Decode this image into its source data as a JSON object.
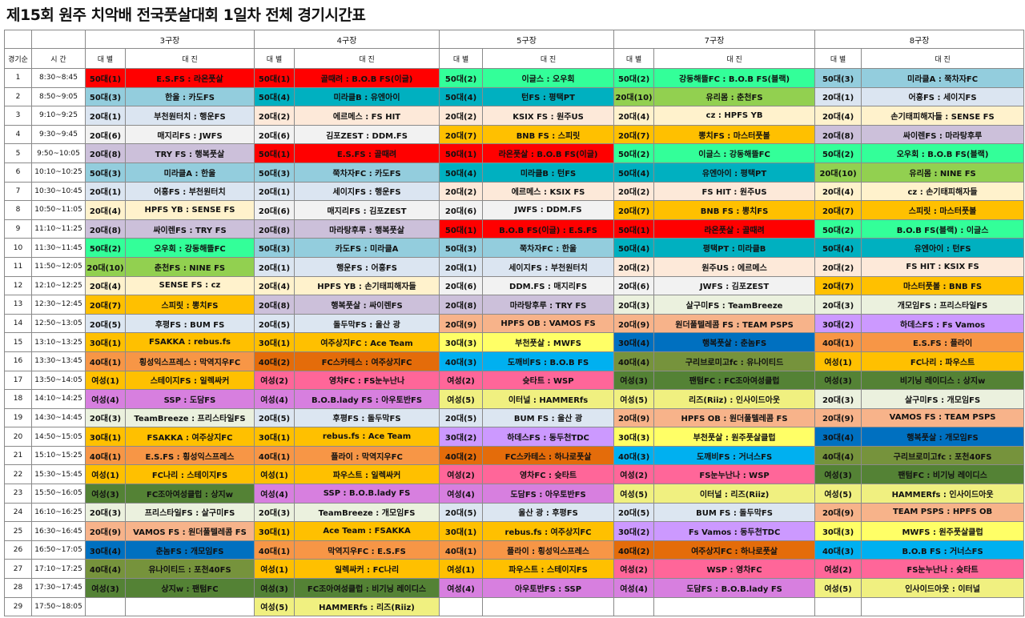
{
  "title": "제15회 원주 치악배 전국풋살대회 1일차 전체 경기시간표",
  "header": {
    "order_label": "경기순",
    "time_label": "시 간",
    "division_label": "대 별",
    "match_label": "대 진",
    "courts": [
      "3구장",
      "4구장",
      "5구장",
      "7구장",
      "8구장"
    ]
  },
  "colors": {
    "50대(1)": "#ff0000",
    "50대(2)": "#33ff99",
    "50대(3)": "#93cddd",
    "50대(4)": "#00b0c0",
    "20대(1)": "#dbe5f1",
    "20대(2)": "#fde9d9",
    "20대(3)": "#ebf1de",
    "20대(4)": "#fff2cc",
    "20대(5)": "#dce6f1",
    "20대(6)": "#f2f2f2",
    "20대(7)": "#ffc000",
    "20대(8)": "#ccc0da",
    "20대(9)": "#f7b38a",
    "20대(10)": "#92d050",
    "30대(1)": "#ffc000",
    "30대(2)": "#cc99ff",
    "30대(3)": "#ffff66",
    "30대(4)": "#0070c0",
    "40대(1)": "#f79646",
    "40대(2)": "#e46c0a",
    "40대(3)": "#00b0f0",
    "40대(4)": "#76933c",
    "여성(1)": "#ffc000",
    "여성(2)": "#ff6699",
    "여성(3)": "#548235",
    "여성(4)": "#d77fdf",
    "여성(5)": "#f0f080"
  },
  "rows": [
    {
      "no": "1",
      "time": "8:30~8:45",
      "cells": [
        {
          "div": "50대(1)",
          "match": "E.S.FS : 라온풋살"
        },
        {
          "div": "50대(1)",
          "match": "골때려 : B.O.B FS(이글)"
        },
        {
          "div": "50대(2)",
          "match": "이글스 : 오우회"
        },
        {
          "div": "50대(2)",
          "match": "강동해뜰FC : B.O.B FS(블랙)"
        },
        {
          "div": "50대(3)",
          "match": "미라클A : 쭉차자FC"
        }
      ]
    },
    {
      "no": "2",
      "time": "8:50~9:05",
      "cells": [
        {
          "div": "50대(3)",
          "match": "한울 : 카도FS"
        },
        {
          "div": "50대(4)",
          "match": "미라클B : 유엔아이"
        },
        {
          "div": "50대(4)",
          "match": "턴FS : 평택PT"
        },
        {
          "div": "20대(10)",
          "match": "유리몸 : 춘천FS"
        },
        {
          "div": "20대(1)",
          "match": "어흥FS : 세이지FS"
        }
      ]
    },
    {
      "no": "3",
      "time": "9:10~9:25",
      "cells": [
        {
          "div": "20대(1)",
          "match": "부천원터치 : 행운FS"
        },
        {
          "div": "20대(2)",
          "match": "에르메스 : FS HIT"
        },
        {
          "div": "20대(2)",
          "match": "KSIX FS : 원주US"
        },
        {
          "div": "20대(4)",
          "match": "cz : HPFS YB"
        },
        {
          "div": "20대(4)",
          "match": "손기태피해자들 : SENSE FS"
        }
      ]
    },
    {
      "no": "4",
      "time": "9:30~9:45",
      "cells": [
        {
          "div": "20대(6)",
          "match": "매지리FS : JWFS"
        },
        {
          "div": "20대(6)",
          "match": "김포ZEST : DDM.FS"
        },
        {
          "div": "20대(7)",
          "match": "BNB FS : 스피릿"
        },
        {
          "div": "20대(7)",
          "match": "뽕치FS : 마스터풋볼"
        },
        {
          "div": "20대(8)",
          "match": "싸이렌FS : 마라탕후루"
        }
      ]
    },
    {
      "no": "5",
      "time": "9:50~10:05",
      "cells": [
        {
          "div": "20대(8)",
          "match": "TRY FS : 행복풋살"
        },
        {
          "div": "50대(1)",
          "match": "E.S.FS : 골때려"
        },
        {
          "div": "50대(1)",
          "match": "라온풋살 : B.O.B FS(이글)"
        },
        {
          "div": "50대(2)",
          "match": "이글스 : 강동해뜰FC"
        },
        {
          "div": "50대(2)",
          "match": "오우회 : B.O.B FS(블랙)"
        }
      ]
    },
    {
      "no": "6",
      "time": "10:10~10:25",
      "cells": [
        {
          "div": "50대(3)",
          "match": "미라클A : 한울"
        },
        {
          "div": "50대(3)",
          "match": "쭉차자FC : 카도FS"
        },
        {
          "div": "50대(4)",
          "match": "미라클B : 턴FS"
        },
        {
          "div": "50대(4)",
          "match": "유엔아이 : 평택PT"
        },
        {
          "div": "20대(10)",
          "match": "유리몸 : NINE FS"
        }
      ]
    },
    {
      "no": "7",
      "time": "10:30~10:45",
      "cells": [
        {
          "div": "20대(1)",
          "match": "어흥FS : 부천원터치"
        },
        {
          "div": "20대(1)",
          "match": "세이지FS : 행운FS"
        },
        {
          "div": "20대(2)",
          "match": "에르메스 : KSIX FS"
        },
        {
          "div": "20대(2)",
          "match": "FS HIT : 원주US"
        },
        {
          "div": "20대(4)",
          "match": "cz : 손기태피해자들"
        }
      ]
    },
    {
      "no": "8",
      "time": "10:50~11:05",
      "cells": [
        {
          "div": "20대(4)",
          "match": "HPFS YB : SENSE FS"
        },
        {
          "div": "20대(6)",
          "match": "매지리FS : 김포ZEST"
        },
        {
          "div": "20대(6)",
          "match": "JWFS : DDM.FS"
        },
        {
          "div": "20대(7)",
          "match": "BNB FS : 뽕치FS"
        },
        {
          "div": "20대(7)",
          "match": "스피릿 : 마스터풋볼"
        }
      ]
    },
    {
      "no": "9",
      "time": "11:10~11:25",
      "cells": [
        {
          "div": "20대(8)",
          "match": "싸이렌FS : TRY FS"
        },
        {
          "div": "20대(8)",
          "match": "마라탕후루 : 행복풋살"
        },
        {
          "div": "50대(1)",
          "match": "B.O.B FS(이글) : E.S.FS"
        },
        {
          "div": "50대(1)",
          "match": "라온풋살 : 골때려"
        },
        {
          "div": "50대(2)",
          "match": "B.O.B FS(블랙) : 이글스"
        }
      ]
    },
    {
      "no": "10",
      "time": "11:30~11:45",
      "cells": [
        {
          "div": "50대(2)",
          "match": "오우회 : 강동해뜰FC"
        },
        {
          "div": "50대(3)",
          "match": "카도FS : 미라클A"
        },
        {
          "div": "50대(3)",
          "match": "쭉차자FC : 한울"
        },
        {
          "div": "50대(4)",
          "match": "평택PT : 미라클B"
        },
        {
          "div": "50대(4)",
          "match": "유엔아이 : 턴FS"
        }
      ]
    },
    {
      "no": "11",
      "time": "11:50~12:05",
      "cells": [
        {
          "div": "20대(10)",
          "match": "춘천FS : NINE FS"
        },
        {
          "div": "20대(1)",
          "match": "행운FS : 어흥FS"
        },
        {
          "div": "20대(1)",
          "match": "세이지FS : 부천원터치"
        },
        {
          "div": "20대(2)",
          "match": "원주US : 에르메스"
        },
        {
          "div": "20대(2)",
          "match": "FS HIT : KSIX FS"
        }
      ]
    },
    {
      "no": "12",
      "time": "12:10~12:25",
      "cells": [
        {
          "div": "20대(4)",
          "match": "SENSE FS : cz"
        },
        {
          "div": "20대(4)",
          "match": "HPFS YB : 손기태피해자들"
        },
        {
          "div": "20대(6)",
          "match": "DDM.FS : 매지리FS"
        },
        {
          "div": "20대(6)",
          "match": "JWFS : 김포ZEST"
        },
        {
          "div": "20대(7)",
          "match": "마스터풋볼 : BNB FS"
        }
      ]
    },
    {
      "no": "13",
      "time": "12:30~12:45",
      "cells": [
        {
          "div": "20대(7)",
          "match": "스피릿 : 뽕치FS"
        },
        {
          "div": "20대(8)",
          "match": "행복풋살 : 싸이렌FS"
        },
        {
          "div": "20대(8)",
          "match": "마라탕후루 : TRY FS"
        },
        {
          "div": "20대(3)",
          "match": "살구미FS : TeamBreeze"
        },
        {
          "div": "20대(3)",
          "match": "개모임FS : 프리스타일FS"
        }
      ]
    },
    {
      "no": "14",
      "time": "12:50~13:05",
      "cells": [
        {
          "div": "20대(5)",
          "match": "후평FS : BUM FS"
        },
        {
          "div": "20대(5)",
          "match": "돌두막FS : 울산 광"
        },
        {
          "div": "20대(9)",
          "match": "HPFS OB : VAMOS FS"
        },
        {
          "div": "20대(9)",
          "match": "원더풀텔레콤 FS : TEAM PSPS"
        },
        {
          "div": "30대(2)",
          "match": "하데스FS : Fs Vamos"
        }
      ]
    },
    {
      "no": "15",
      "time": "13:10~13:25",
      "cells": [
        {
          "div": "30대(1)",
          "match": "FSAKKA : rebus.fs"
        },
        {
          "div": "30대(1)",
          "match": "여주상지FC : Ace Team"
        },
        {
          "div": "30대(3)",
          "match": "부천풋살 : MWFS"
        },
        {
          "div": "30대(4)",
          "match": "행복풋살 : 춘놈FS"
        },
        {
          "div": "40대(1)",
          "match": "E.S.FS : 플라이"
        }
      ]
    },
    {
      "no": "16",
      "time": "13:30~13:45",
      "cells": [
        {
          "div": "40대(1)",
          "match": "횡성익스프레스 : 막역지우FC"
        },
        {
          "div": "40대(2)",
          "match": "FC스카테스 : 여주상지FC"
        },
        {
          "div": "40대(3)",
          "match": "도깨비FS : B.O.B FS"
        },
        {
          "div": "40대(4)",
          "match": "구리브로미고fc : 유나이티드"
        },
        {
          "div": "여성(1)",
          "match": "FC나리 : 파우스트"
        }
      ]
    },
    {
      "no": "17",
      "time": "13:50~14:05",
      "cells": [
        {
          "div": "여성(1)",
          "match": "스테이지FS : 일렉싸커"
        },
        {
          "div": "여성(2)",
          "match": "영차FC : FS눈누난나"
        },
        {
          "div": "여성(2)",
          "match": "슛타트 : WSP"
        },
        {
          "div": "여성(3)",
          "match": "팬텀FC : FC조아여성클럽"
        },
        {
          "div": "여성(3)",
          "match": "비기닝 레이디스 : 상지w"
        }
      ]
    },
    {
      "no": "18",
      "time": "14:10~14:25",
      "cells": [
        {
          "div": "여성(4)",
          "match": "SSP : 도담FS"
        },
        {
          "div": "여성(4)",
          "match": "B.O.B.lady FS : 아우토반FS"
        },
        {
          "div": "여성(5)",
          "match": "이터널 : HAMMERfs"
        },
        {
          "div": "여성(5)",
          "match": "리즈(Riiz) : 인사이드아웃"
        },
        {
          "div": "20대(3)",
          "match": "살구미FS : 개모임FS"
        }
      ]
    },
    {
      "no": "19",
      "time": "14:30~14:45",
      "cells": [
        {
          "div": "20대(3)",
          "match": "TeamBreeze : 프리스타일FS"
        },
        {
          "div": "20대(5)",
          "match": "후평FS : 돌두막FS"
        },
        {
          "div": "20대(5)",
          "match": "BUM FS : 울산 광"
        },
        {
          "div": "20대(9)",
          "match": "HPFS OB : 원더풀텔레콤 FS"
        },
        {
          "div": "20대(9)",
          "match": "VAMOS FS : TEAM PSPS"
        }
      ]
    },
    {
      "no": "20",
      "time": "14:50~15:05",
      "cells": [
        {
          "div": "30대(1)",
          "match": "FSAKKA : 여주상지FC"
        },
        {
          "div": "30대(1)",
          "match": "rebus.fs : Ace Team"
        },
        {
          "div": "30대(2)",
          "match": "하데스FS : 동두천TDC"
        },
        {
          "div": "30대(3)",
          "match": "부천풋살 : 원주풋살클럽"
        },
        {
          "div": "30대(4)",
          "match": "행복풋살 : 개모임FS"
        }
      ]
    },
    {
      "no": "21",
      "time": "15:10~15:25",
      "cells": [
        {
          "div": "40대(1)",
          "match": "E.S.FS : 횡성익스프레스"
        },
        {
          "div": "40대(1)",
          "match": "플라이 : 막역지우FC"
        },
        {
          "div": "40대(2)",
          "match": "FC스카테스 : 하나로풋살"
        },
        {
          "div": "40대(3)",
          "match": "도깨비FS : 거너스FS"
        },
        {
          "div": "40대(4)",
          "match": "구리브로미고fc : 포천40FS"
        }
      ]
    },
    {
      "no": "22",
      "time": "15:30~15:45",
      "cells": [
        {
          "div": "여성(1)",
          "match": "FC나리 : 스테이지FS"
        },
        {
          "div": "여성(1)",
          "match": "파우스트 : 일렉싸커"
        },
        {
          "div": "여성(2)",
          "match": "영차FC : 슛타트"
        },
        {
          "div": "여성(2)",
          "match": "FS눈누난나 : WSP"
        },
        {
          "div": "여성(3)",
          "match": "팬텀FC : 비기닝 레이디스"
        }
      ]
    },
    {
      "no": "23",
      "time": "15:50~16:05",
      "cells": [
        {
          "div": "여성(3)",
          "match": "FC조아여성클럽 : 상지w"
        },
        {
          "div": "여성(4)",
          "match": "SSP : B.O.B.lady FS"
        },
        {
          "div": "여성(4)",
          "match": "도담FS : 아우토반FS"
        },
        {
          "div": "여성(5)",
          "match": "이터널 : 리즈(Riiz)"
        },
        {
          "div": "여성(5)",
          "match": "HAMMERfs : 인사이드아웃"
        }
      ]
    },
    {
      "no": "24",
      "time": "16:10~16:25",
      "cells": [
        {
          "div": "20대(3)",
          "match": "프리스타일FS : 살구미FS"
        },
        {
          "div": "20대(3)",
          "match": "TeamBreeze : 개모임FS"
        },
        {
          "div": "20대(5)",
          "match": "울산 광 : 후평FS"
        },
        {
          "div": "20대(5)",
          "match": "BUM FS : 돌두막FS"
        },
        {
          "div": "20대(9)",
          "match": "TEAM PSPS : HPFS OB"
        }
      ]
    },
    {
      "no": "25",
      "time": "16:30~16:45",
      "cells": [
        {
          "div": "20대(9)",
          "match": "VAMOS FS : 원더풀텔레콤 FS"
        },
        {
          "div": "30대(1)",
          "match": "Ace Team : FSAKKA"
        },
        {
          "div": "30대(1)",
          "match": "rebus.fs : 여주상지FC"
        },
        {
          "div": "30대(2)",
          "match": "Fs Vamos : 동두천TDC"
        },
        {
          "div": "30대(3)",
          "match": "MWFS : 원주풋살클럽"
        }
      ]
    },
    {
      "no": "26",
      "time": "16:50~17:05",
      "cells": [
        {
          "div": "30대(4)",
          "match": "춘놈FS : 개모임FS"
        },
        {
          "div": "40대(1)",
          "match": "막역지우FC : E.S.FS"
        },
        {
          "div": "40대(1)",
          "match": "플라이 : 횡성익스프레스"
        },
        {
          "div": "40대(2)",
          "match": "여주상지FC : 하나로풋살"
        },
        {
          "div": "40대(3)",
          "match": "B.O.B FS : 거너스FS"
        }
      ]
    },
    {
      "no": "27",
      "time": "17:10~17:25",
      "cells": [
        {
          "div": "40대(4)",
          "match": "유나이티드 : 포천40FS"
        },
        {
          "div": "여성(1)",
          "match": "일렉싸커 : FC나리"
        },
        {
          "div": "여성(1)",
          "match": "파우스트 : 스테이지FS"
        },
        {
          "div": "여성(2)",
          "match": "WSP : 영차FC"
        },
        {
          "div": "여성(2)",
          "match": "FS눈누난나 : 슛타트"
        }
      ]
    },
    {
      "no": "28",
      "time": "17:30~17:45",
      "cells": [
        {
          "div": "여성(3)",
          "match": "상지w : 팬텀FC"
        },
        {
          "div": "여성(3)",
          "match": "FC조아여성클럽 : 비기닝 레이디스"
        },
        {
          "div": "여성(4)",
          "match": "아우토반FS : SSP"
        },
        {
          "div": "여성(4)",
          "match": "도담FS : B.O.B.lady FS"
        },
        {
          "div": "여성(5)",
          "match": "인사이드아웃 : 이터널"
        }
      ]
    },
    {
      "no": "29",
      "time": "17:50~18:05",
      "cells": [
        {
          "div": "",
          "match": ""
        },
        {
          "div": "여성(5)",
          "match": "HAMMERfs : 리즈(Riiz)"
        },
        {
          "div": "",
          "match": ""
        },
        {
          "div": "",
          "match": ""
        },
        {
          "div": "",
          "match": ""
        }
      ]
    }
  ]
}
